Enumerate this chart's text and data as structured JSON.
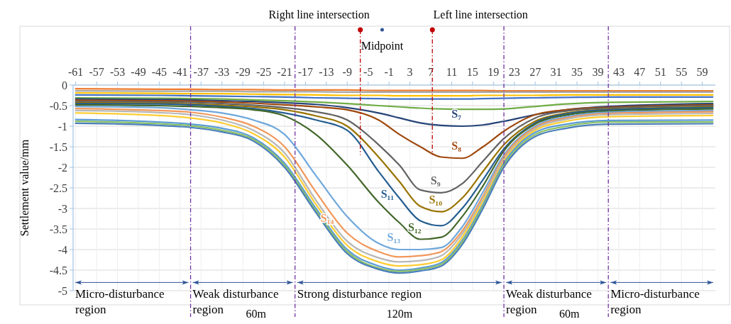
{
  "chart_data": {
    "type": "line",
    "ylabel": "Settlement value/mm",
    "x": [
      -61,
      -45,
      -39,
      -33,
      -27,
      -21,
      -15,
      -9,
      -3,
      1,
      5,
      9,
      13,
      17,
      21,
      27,
      33,
      41,
      61
    ],
    "xlim": [
      -61.5,
      61.5
    ],
    "xticks": [
      -61,
      -57,
      -53,
      -49,
      -45,
      -41,
      -37,
      -33,
      -29,
      -25,
      -21,
      -17,
      -13,
      -9,
      -5,
      -1,
      3,
      7,
      11,
      15,
      19,
      23,
      27,
      31,
      35,
      39,
      43,
      47,
      51,
      55,
      59
    ],
    "ylim": [
      -5,
      0
    ],
    "yticks": [
      0,
      -0.5,
      -1,
      -1.5,
      -2,
      -2.5,
      -3,
      -3.5,
      -4,
      -4.5,
      -5
    ],
    "grid": true,
    "series": [
      {
        "color": "#ed7d31",
        "values": [
          -0.09,
          -0.1,
          -0.1,
          -0.11,
          -0.11,
          -0.12,
          -0.12,
          -0.12,
          -0.13,
          -0.13,
          -0.13,
          -0.13,
          -0.13,
          -0.13,
          -0.14,
          -0.14,
          -0.14,
          -0.14,
          -0.14
        ]
      },
      {
        "color": "#a5a5a5",
        "values": [
          -0.14,
          -0.15,
          -0.15,
          -0.15,
          -0.16,
          -0.16,
          -0.16,
          -0.17,
          -0.17,
          -0.17,
          -0.17,
          -0.17,
          -0.17,
          -0.17,
          -0.17,
          -0.17,
          -0.17,
          -0.17,
          -0.17
        ]
      },
      {
        "color": "#ffc000",
        "values": [
          -0.19,
          -0.2,
          -0.21,
          -0.21,
          -0.22,
          -0.23,
          -0.24,
          -0.25,
          -0.25,
          -0.26,
          -0.26,
          -0.26,
          -0.26,
          -0.25,
          -0.25,
          -0.25,
          -0.24,
          -0.24,
          -0.24
        ]
      },
      {
        "color": "#4472c4",
        "values": [
          -0.24,
          -0.25,
          -0.26,
          -0.27,
          -0.28,
          -0.29,
          -0.31,
          -0.32,
          -0.33,
          -0.34,
          -0.34,
          -0.34,
          -0.34,
          -0.33,
          -0.32,
          -0.31,
          -0.3,
          -0.29,
          -0.29
        ]
      },
      {
        "color": "#70ad47",
        "values": [
          -0.31,
          -0.32,
          -0.33,
          -0.34,
          -0.36,
          -0.38,
          -0.41,
          -0.45,
          -0.5,
          -0.53,
          -0.56,
          -0.58,
          -0.59,
          -0.59,
          -0.58,
          -0.52,
          -0.46,
          -0.42,
          -0.4
        ]
      },
      {
        "name": "S₇",
        "color": "#264478",
        "values": [
          -0.34,
          -0.35,
          -0.36,
          -0.38,
          -0.4,
          -0.43,
          -0.47,
          -0.55,
          -0.68,
          -0.8,
          -0.92,
          -0.98,
          -1.0,
          -0.97,
          -0.88,
          -0.72,
          -0.6,
          -0.52,
          -0.45
        ]
      },
      {
        "name": "S₈",
        "color": "#9e480e",
        "values": [
          -0.37,
          -0.38,
          -0.39,
          -0.41,
          -0.44,
          -0.48,
          -0.53,
          -0.6,
          -0.85,
          -1.2,
          -1.5,
          -1.75,
          -1.78,
          -1.5,
          -1.12,
          -0.72,
          -0.6,
          -0.54,
          -0.48
        ]
      },
      {
        "name": "S₉",
        "color": "#636363",
        "values": [
          -0.4,
          -0.41,
          -0.42,
          -0.45,
          -0.49,
          -0.55,
          -0.65,
          -0.85,
          -1.45,
          -1.95,
          -2.55,
          -2.62,
          -2.4,
          -1.85,
          -1.3,
          -0.8,
          -0.63,
          -0.56,
          -0.5
        ]
      },
      {
        "name": "S₁₀",
        "color": "#997300",
        "values": [
          -0.43,
          -0.44,
          -0.46,
          -0.49,
          -0.53,
          -0.6,
          -0.75,
          -1.0,
          -1.75,
          -2.35,
          -2.95,
          -3.08,
          -2.75,
          -2.1,
          -1.45,
          -0.88,
          -0.68,
          -0.59,
          -0.53
        ]
      },
      {
        "name": "S₁₁",
        "color": "#255e91",
        "values": [
          -0.45,
          -0.46,
          -0.48,
          -0.52,
          -0.57,
          -0.68,
          -0.85,
          -1.1,
          -2.1,
          -2.75,
          -3.3,
          -3.42,
          -3.0,
          -2.3,
          -1.55,
          -0.92,
          -0.7,
          -0.6,
          -0.55
        ]
      },
      {
        "name": "S₁₂",
        "color": "#43682b",
        "values": [
          -0.48,
          -0.5,
          -0.52,
          -0.55,
          -0.6,
          -0.75,
          -1.2,
          -1.95,
          -2.85,
          -3.35,
          -3.75,
          -3.7,
          -3.2,
          -2.45,
          -1.6,
          -0.95,
          -0.73,
          -0.63,
          -0.58
        ]
      },
      {
        "name": "S₁₃",
        "color": "#6fa8dc",
        "values": [
          -0.52,
          -0.55,
          -0.6,
          -0.68,
          -0.85,
          -1.2,
          -2.2,
          -3.2,
          -3.85,
          -4.0,
          -4.0,
          -3.95,
          -3.45,
          -2.6,
          -1.7,
          -1.0,
          -0.77,
          -0.66,
          -0.62
        ]
      },
      {
        "name": "S₁₄",
        "color": "#f1975a",
        "values": [
          -0.57,
          -0.62,
          -0.66,
          -0.78,
          -1.0,
          -1.5,
          -2.6,
          -3.6,
          -4.05,
          -4.18,
          -4.15,
          -4.05,
          -3.55,
          -2.7,
          -1.75,
          -1.03,
          -0.8,
          -0.69,
          -0.65
        ]
      },
      {
        "color": "#b7b7b7",
        "values": [
          -0.62,
          -0.67,
          -0.72,
          -0.85,
          -1.1,
          -1.65,
          -2.8,
          -3.8,
          -4.2,
          -4.3,
          -4.27,
          -4.15,
          -3.62,
          -2.75,
          -1.8,
          -1.06,
          -0.83,
          -0.72,
          -0.69
        ]
      },
      {
        "color": "#ffcd33",
        "values": [
          -0.68,
          -0.74,
          -0.8,
          -0.92,
          -1.18,
          -1.75,
          -2.9,
          -3.9,
          -4.3,
          -4.4,
          -4.37,
          -4.25,
          -3.7,
          -2.82,
          -1.85,
          -1.1,
          -0.88,
          -0.77,
          -0.74
        ]
      },
      {
        "color": "#5b9bd5",
        "values": [
          -0.84,
          -0.9,
          -0.95,
          -1.05,
          -1.28,
          -1.9,
          -3.0,
          -4.0,
          -4.4,
          -4.5,
          -4.45,
          -4.32,
          -3.78,
          -2.9,
          -1.9,
          -1.15,
          -0.95,
          -0.86,
          -0.85
        ]
      },
      {
        "color": "#8cc168",
        "values": [
          -0.88,
          -0.94,
          -0.99,
          -1.1,
          -1.32,
          -1.95,
          -3.05,
          -4.05,
          -4.45,
          -4.53,
          -4.48,
          -4.36,
          -3.82,
          -2.95,
          -1.95,
          -1.2,
          -1.0,
          -0.9,
          -0.9
        ]
      },
      {
        "color": "#4a7ebb",
        "values": [
          -0.93,
          -0.98,
          -1.03,
          -1.14,
          -1.36,
          -2.0,
          -3.1,
          -4.1,
          -4.48,
          -4.57,
          -4.52,
          -4.4,
          -3.88,
          -3.0,
          -2.0,
          -1.25,
          -1.05,
          -0.95,
          -0.94
        ]
      }
    ],
    "ref_lines": [
      {
        "axis": "x",
        "value": -39,
        "color": "#7030a0",
        "line_style": "dashed"
      },
      {
        "axis": "x",
        "value": -19,
        "color": "#7030a0",
        "line_style": "dashed"
      },
      {
        "axis": "x",
        "value": 21,
        "color": "#7030a0",
        "line_style": "dashed"
      },
      {
        "axis": "x",
        "value": 41,
        "color": "#7030a0",
        "line_style": "dashed"
      },
      {
        "axis": "x",
        "value": -6.5,
        "label": "Right line intersection",
        "color": "#c00000",
        "line_style": "dashed"
      },
      {
        "axis": "x",
        "value": 7.3,
        "label": "Left line intersection",
        "color": "#c00000",
        "line_style": "dashed"
      }
    ],
    "annotations": [
      "Midpoint",
      {
        "text": "Micro-disturbance region",
        "x": -39,
        "y": -4.8
      },
      {
        "text": "Weak disturbance region",
        "x": -19,
        "y": -4.8
      },
      {
        "text": "Strong disturbance region",
        "x": 21,
        "y": -4.8
      },
      {
        "text": "Weak disturbance region",
        "x": 41,
        "y": -4.8
      },
      {
        "text": "Micro-disturbance region",
        "x": 41,
        "y": -4.8
      },
      "60m",
      "120m",
      "60m"
    ]
  }
}
